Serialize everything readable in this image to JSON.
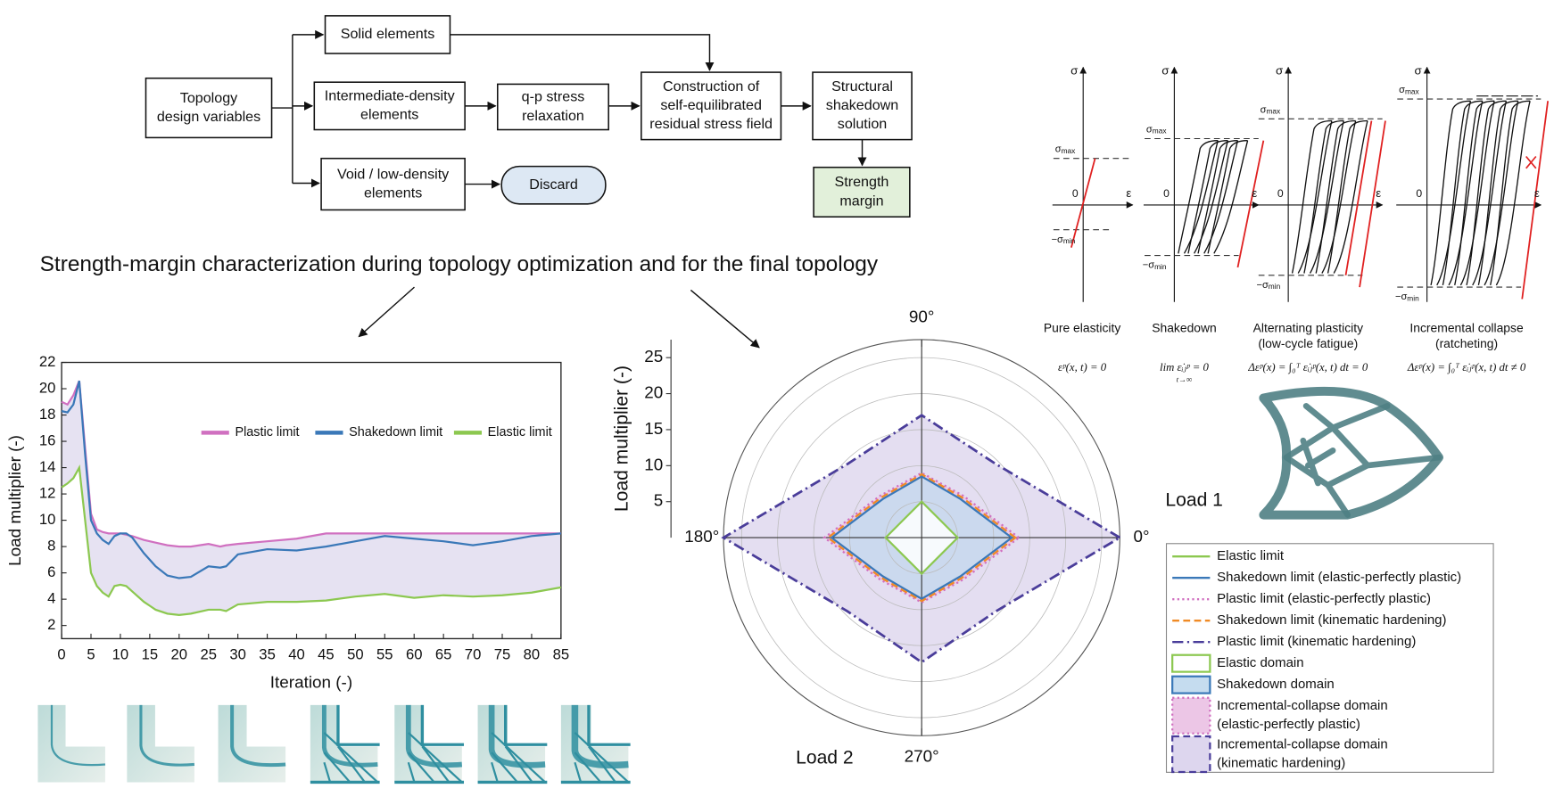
{
  "flowchart": {
    "nodes": [
      {
        "lines": [
          "Topology",
          "design variables"
        ]
      },
      {
        "lines": [
          "Solid elements"
        ]
      },
      {
        "lines": [
          "Intermediate-density",
          "elements"
        ]
      },
      {
        "lines": [
          "Void / low-density",
          "elements"
        ]
      },
      {
        "lines": [
          "Discard"
        ]
      },
      {
        "lines": [
          "q-p stress",
          "relaxation"
        ]
      },
      {
        "lines": [
          "Construction of",
          "self-equilibrated",
          "residual stress field"
        ]
      },
      {
        "lines": [
          "Structural",
          "shakedown",
          "solution"
        ]
      },
      {
        "lines": [
          "Strength",
          "margin"
        ]
      }
    ]
  },
  "caption": "Strength-margin characterization during topology optimization and for the final topology",
  "chart_data": [
    {
      "type": "line",
      "xlabel": "Iteration (-)",
      "ylabel": "Load multiplier (-)",
      "x": [
        0,
        1,
        2,
        3,
        4,
        5,
        6,
        7,
        8,
        9,
        10,
        11,
        12,
        14,
        15,
        16,
        18,
        20,
        22,
        25,
        27,
        28,
        30,
        35,
        40,
        45,
        50,
        55,
        60,
        65,
        70,
        75,
        80,
        85
      ],
      "series": [
        {
          "name": "Plastic limit",
          "color": "#d070c0",
          "values": [
            19.0,
            18.8,
            19.5,
            20.6,
            15.5,
            10.5,
            9.3,
            9.1,
            9.0,
            9.0,
            9.0,
            8.9,
            8.8,
            8.5,
            8.4,
            8.3,
            8.1,
            8.0,
            8.0,
            8.2,
            8.0,
            8.1,
            8.2,
            8.4,
            8.6,
            9.0,
            9.0,
            9.0,
            9.0,
            9.0,
            9.0,
            9.0,
            9.0,
            9.0
          ]
        },
        {
          "name": "Shakedown limit",
          "color": "#3a78b8",
          "values": [
            18.3,
            18.2,
            18.8,
            20.6,
            15.0,
            10.0,
            9.0,
            8.5,
            8.2,
            8.8,
            9.0,
            9.0,
            8.7,
            7.5,
            7.0,
            6.5,
            5.8,
            5.6,
            5.7,
            6.5,
            6.4,
            6.5,
            7.4,
            7.8,
            7.7,
            8.0,
            8.4,
            8.8,
            8.6,
            8.4,
            8.1,
            8.4,
            8.8,
            9.0
          ]
        },
        {
          "name": "Elastic limit",
          "color": "#8cc850",
          "values": [
            12.5,
            12.8,
            13.2,
            14.0,
            10.0,
            6.0,
            5.0,
            4.5,
            4.2,
            5.0,
            5.1,
            5.0,
            4.6,
            3.8,
            3.5,
            3.2,
            2.9,
            2.8,
            2.9,
            3.2,
            3.2,
            3.1,
            3.6,
            3.8,
            3.8,
            3.9,
            4.2,
            4.4,
            4.1,
            4.3,
            4.2,
            4.3,
            4.5,
            4.9
          ]
        }
      ],
      "xlim": [
        0,
        85
      ],
      "xticks": [
        0,
        5,
        10,
        15,
        20,
        25,
        30,
        35,
        40,
        45,
        50,
        55,
        60,
        65,
        70,
        75,
        80,
        85
      ],
      "ylim": [
        1,
        22
      ],
      "yticks": [
        2,
        4,
        6,
        8,
        10,
        12,
        14,
        16,
        18,
        20,
        22
      ],
      "shade": "#ddd8ee"
    },
    {
      "type": "polar",
      "ylabel": "Load multiplier (-)",
      "annotations": [
        "Load 1",
        "Load 2"
      ],
      "theta": [
        0,
        45,
        90,
        135,
        180,
        225,
        270,
        315
      ],
      "thetaticks": [
        {
          "value": 0,
          "label": "0°"
        },
        {
          "value": 90,
          "label": "90°"
        },
        {
          "value": 180,
          "label": "180°"
        },
        {
          "value": 270,
          "label": "270°"
        }
      ],
      "rlim": [
        0,
        27.5
      ],
      "rticks": [
        5,
        10,
        15,
        20,
        25
      ],
      "series": [
        {
          "name": "Elastic limit",
          "color": "#8cc850",
          "dash": "solid",
          "values": [
            5,
            3.54,
            5,
            3.54,
            5,
            3.54,
            5,
            3.54
          ]
        },
        {
          "name": "Shakedown limit (elastic-perfectly plastic)",
          "color": "#3a78b8",
          "dash": "solid",
          "values": [
            12.5,
            7.6,
            8.5,
            7.6,
            12.5,
            7.6,
            8.5,
            7.6
          ]
        },
        {
          "name": "Plastic limit (elastic-perfectly plastic)",
          "color": "#d070c0",
          "dash": "dotted",
          "values": [
            13.5,
            8.2,
            9,
            8.2,
            13.5,
            8.2,
            9,
            8.2
          ]
        },
        {
          "name": "Shakedown limit (kinematic hardening)",
          "color": "#f08a24",
          "dash": "dashed",
          "values": [
            13,
            7.9,
            8.8,
            7.9,
            13,
            7.9,
            8.8,
            7.9
          ]
        },
        {
          "name": "Plastic limit (kinematic hardening)",
          "color": "#4a3d9a",
          "dash": "dashdot",
          "values": [
            27.5,
            14.5,
            17,
            14.5,
            27.5,
            14.5,
            17.3,
            14.5
          ]
        }
      ],
      "areas": [
        {
          "name": [
            "Elastic domain"
          ],
          "color": "#ffffff",
          "edge": "#8cc850",
          "dash": "solid"
        },
        {
          "name": [
            "Shakedown domain"
          ],
          "color": "#c5dcef",
          "edge": "#3a78b8",
          "dash": "solid"
        },
        {
          "name": [
            "Incremental-collapse domain",
            "(elastic-perfectly plastic)"
          ],
          "color": "#ecc6e6",
          "edge": "#d070c0",
          "dash": "dotted"
        },
        {
          "name": [
            "Incremental-collapse domain",
            "(kinematic hardening)"
          ],
          "color": "#ddd6ee",
          "edge": "#4a3d9a",
          "dash": "dashed"
        }
      ],
      "grid": true
    }
  ],
  "hysteresis": {
    "stress": "σ",
    "strain": "ε",
    "origin": "0",
    "max": "σ",
    "max_sub": "max",
    "min": "−σ",
    "min_sub": "min",
    "panels": [
      {
        "title": [
          "Pure elasticity"
        ],
        "formula": [
          "εᵖ(x, t) = 0"
        ]
      },
      {
        "title": [
          "Shakedown"
        ],
        "formula": [
          "lim ε̇ᵢⱼᵖ = 0",
          "t→∞"
        ]
      },
      {
        "title": [
          "Alternating plasticity",
          "(low-cycle fatigue)"
        ],
        "formula": [
          "Δεᵖ(x) = ∫₀ᵀ ε̇ᵢⱼᵖ(x, t) dt = 0"
        ]
      },
      {
        "title": [
          "Incremental collapse",
          "(ratcheting)"
        ],
        "formula": [
          "Δεᵖ(x) = ∫₀ᵀ ε̇ᵢⱼᵖ(x, t) dt ≠ 0"
        ]
      }
    ]
  }
}
